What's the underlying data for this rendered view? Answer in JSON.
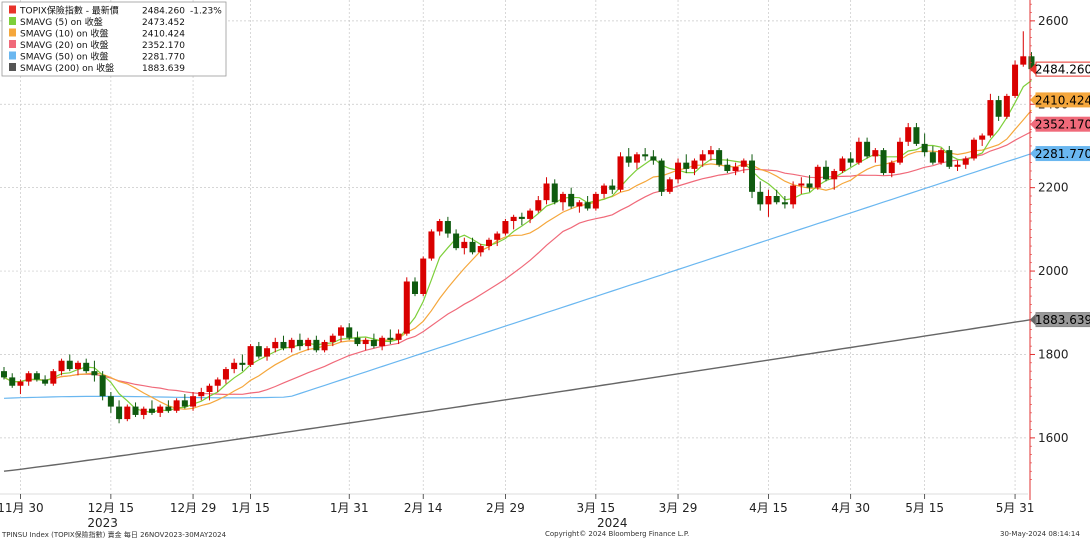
{
  "footer": {
    "left": "TPINSU Index (TOPIX保險指數) 賣金  每日 26NOV2023-30MAY2024",
    "center": "Copyright© 2024 Bloomberg Finance L.P.",
    "right": "30-May-2024 08:14:14"
  },
  "colors": {
    "up": "#d90000",
    "down": "#0f5a0f",
    "sma5": "#7dcf3a",
    "sma10": "#f5a73c",
    "sma20": "#f06a7a",
    "sma50": "#6ab7f0",
    "sma200": "#666666",
    "axis": "#e23030",
    "grid": "#c8c8c8"
  },
  "chart_data": {
    "type": "candlestick",
    "title": "",
    "ylim": [
      1475,
      2650
    ],
    "y_ticks": [
      1600,
      1800,
      2000,
      2200,
      2400,
      2600
    ],
    "legend": [
      {
        "label": "TOPIX保險指數 - 最新價",
        "value": "2484.260",
        "change": "-1.23%",
        "color": "#e8322a"
      },
      {
        "label": "SMAVG (5)  on 收盤",
        "value": "2473.452",
        "color": "#7dcf3a"
      },
      {
        "label": "SMAVG (10)  on 收盤",
        "value": "2410.424",
        "color": "#f5a73c"
      },
      {
        "label": "SMAVG (20)  on 收盤",
        "value": "2352.170",
        "color": "#f06a7a"
      },
      {
        "label": "SMAVG (50)  on 收盤",
        "value": "2281.770",
        "color": "#6ab7f0"
      },
      {
        "label": "SMAVG (200)  on 收盤",
        "value": "1883.639",
        "color": "#555555"
      }
    ],
    "x_ticks": [
      {
        "label": "11月 30",
        "i": 2
      },
      {
        "label": "12月 15",
        "i": 13
      },
      {
        "label": "12月 29",
        "i": 23
      },
      {
        "label": "1月 15",
        "i": 30
      },
      {
        "label": "1月 31",
        "i": 42
      },
      {
        "label": "2月 14",
        "i": 51
      },
      {
        "label": "2月 29",
        "i": 61
      },
      {
        "label": "3月 15",
        "i": 72
      },
      {
        "label": "3月 29",
        "i": 82
      },
      {
        "label": "4月 15",
        "i": 93
      },
      {
        "label": "4月 30",
        "i": 103
      },
      {
        "label": "5月 15",
        "i": 112
      },
      {
        "label": "5月 31",
        "i": 123
      }
    ],
    "year_labels": [
      {
        "label": "2023",
        "i": 12
      },
      {
        "label": "2024",
        "i": 74
      }
    ],
    "price_labels": [
      {
        "text": "2484.260",
        "value": 2484.26,
        "bg": "#ffffff",
        "border": "#e8322a",
        "color": "#000000",
        "marker": "#e8322a"
      },
      {
        "text": "2410.424",
        "value": 2410.424,
        "bg": "#f5a73c",
        "border": "#f5a73c",
        "color": "#000000",
        "marker": "#f5a73c"
      },
      {
        "text": "2352.170",
        "value": 2352.17,
        "bg": "#f06a7a",
        "border": "#f06a7a",
        "color": "#000000",
        "marker": "#f06a7a"
      },
      {
        "text": "2281.770",
        "value": 2281.77,
        "bg": "#6ab7f0",
        "border": "#6ab7f0",
        "color": "#000000",
        "marker": "#6ab7f0"
      },
      {
        "text": "1883.639",
        "value": 1883.639,
        "bg": "#999999",
        "border": "#888888",
        "color": "#000000",
        "marker": "#666666"
      }
    ],
    "candles_ohlc": [
      [
        1760,
        1770,
        1740,
        1745
      ],
      [
        1745,
        1755,
        1720,
        1725
      ],
      [
        1725,
        1740,
        1705,
        1735
      ],
      [
        1735,
        1760,
        1725,
        1755
      ],
      [
        1755,
        1760,
        1735,
        1740
      ],
      [
        1740,
        1750,
        1725,
        1730
      ],
      [
        1730,
        1765,
        1725,
        1760
      ],
      [
        1760,
        1790,
        1750,
        1785
      ],
      [
        1785,
        1800,
        1760,
        1765
      ],
      [
        1765,
        1785,
        1750,
        1780
      ],
      [
        1780,
        1790,
        1755,
        1760
      ],
      [
        1760,
        1785,
        1735,
        1750
      ],
      [
        1750,
        1760,
        1690,
        1700
      ],
      [
        1700,
        1710,
        1660,
        1675
      ],
      [
        1675,
        1690,
        1635,
        1645
      ],
      [
        1645,
        1680,
        1640,
        1675
      ],
      [
        1675,
        1685,
        1650,
        1655
      ],
      [
        1655,
        1675,
        1645,
        1670
      ],
      [
        1670,
        1690,
        1655,
        1660
      ],
      [
        1660,
        1680,
        1650,
        1675
      ],
      [
        1675,
        1690,
        1660,
        1665
      ],
      [
        1665,
        1695,
        1660,
        1690
      ],
      [
        1690,
        1705,
        1670,
        1675
      ],
      [
        1675,
        1710,
        1665,
        1700
      ],
      [
        1700,
        1720,
        1690,
        1710
      ],
      [
        1710,
        1730,
        1690,
        1725
      ],
      [
        1725,
        1745,
        1710,
        1740
      ],
      [
        1740,
        1770,
        1730,
        1765
      ],
      [
        1765,
        1790,
        1755,
        1780
      ],
      [
        1780,
        1800,
        1760,
        1775
      ],
      [
        1775,
        1825,
        1770,
        1820
      ],
      [
        1820,
        1830,
        1790,
        1795
      ],
      [
        1795,
        1820,
        1785,
        1815
      ],
      [
        1815,
        1840,
        1805,
        1830
      ],
      [
        1830,
        1845,
        1810,
        1815
      ],
      [
        1815,
        1840,
        1805,
        1835
      ],
      [
        1835,
        1850,
        1810,
        1820
      ],
      [
        1820,
        1840,
        1810,
        1835
      ],
      [
        1835,
        1845,
        1805,
        1810
      ],
      [
        1810,
        1835,
        1805,
        1830
      ],
      [
        1830,
        1850,
        1820,
        1845
      ],
      [
        1845,
        1870,
        1830,
        1865
      ],
      [
        1865,
        1875,
        1835,
        1840
      ],
      [
        1840,
        1855,
        1820,
        1825
      ],
      [
        1825,
        1840,
        1810,
        1835
      ],
      [
        1835,
        1850,
        1815,
        1820
      ],
      [
        1820,
        1845,
        1810,
        1840
      ],
      [
        1840,
        1860,
        1825,
        1835
      ],
      [
        1835,
        1860,
        1825,
        1850
      ],
      [
        1850,
        1985,
        1845,
        1975
      ],
      [
        1975,
        1985,
        1940,
        1945
      ],
      [
        1945,
        2035,
        1940,
        2030
      ],
      [
        2030,
        2100,
        2025,
        2095
      ],
      [
        2095,
        2125,
        2085,
        2120
      ],
      [
        2120,
        2130,
        2080,
        2090
      ],
      [
        2090,
        2100,
        2050,
        2055
      ],
      [
        2055,
        2080,
        2040,
        2070
      ],
      [
        2070,
        2080,
        2040,
        2045
      ],
      [
        2045,
        2065,
        2035,
        2060
      ],
      [
        2060,
        2080,
        2050,
        2075
      ],
      [
        2075,
        2095,
        2060,
        2090
      ],
      [
        2090,
        2125,
        2085,
        2120
      ],
      [
        2120,
        2135,
        2100,
        2130
      ],
      [
        2130,
        2140,
        2110,
        2125
      ],
      [
        2125,
        2150,
        2115,
        2145
      ],
      [
        2145,
        2180,
        2140,
        2170
      ],
      [
        2170,
        2225,
        2160,
        2210
      ],
      [
        2210,
        2220,
        2160,
        2165
      ],
      [
        2165,
        2190,
        2145,
        2185
      ],
      [
        2185,
        2200,
        2150,
        2155
      ],
      [
        2155,
        2170,
        2140,
        2165
      ],
      [
        2165,
        2180,
        2145,
        2150
      ],
      [
        2150,
        2190,
        2145,
        2185
      ],
      [
        2185,
        2210,
        2175,
        2205
      ],
      [
        2205,
        2220,
        2185,
        2195
      ],
      [
        2195,
        2285,
        2190,
        2275
      ],
      [
        2275,
        2295,
        2250,
        2260
      ],
      [
        2260,
        2285,
        2245,
        2280
      ],
      [
        2280,
        2295,
        2265,
        2275
      ],
      [
        2275,
        2290,
        2255,
        2265
      ],
      [
        2265,
        2270,
        2180,
        2190
      ],
      [
        2190,
        2225,
        2185,
        2220
      ],
      [
        2220,
        2270,
        2210,
        2260
      ],
      [
        2260,
        2280,
        2235,
        2245
      ],
      [
        2245,
        2270,
        2230,
        2265
      ],
      [
        2265,
        2290,
        2250,
        2280
      ],
      [
        2280,
        2300,
        2265,
        2290
      ],
      [
        2290,
        2295,
        2250,
        2255
      ],
      [
        2255,
        2270,
        2235,
        2240
      ],
      [
        2240,
        2260,
        2230,
        2250
      ],
      [
        2250,
        2270,
        2235,
        2265
      ],
      [
        2265,
        2280,
        2175,
        2190
      ],
      [
        2190,
        2215,
        2145,
        2160
      ],
      [
        2160,
        2195,
        2130,
        2180
      ],
      [
        2180,
        2195,
        2160,
        2165
      ],
      [
        2165,
        2180,
        2150,
        2160
      ],
      [
        2160,
        2215,
        2150,
        2205
      ],
      [
        2205,
        2225,
        2185,
        2210
      ],
      [
        2210,
        2230,
        2190,
        2200
      ],
      [
        2200,
        2255,
        2195,
        2250
      ],
      [
        2250,
        2265,
        2215,
        2220
      ],
      [
        2220,
        2245,
        2195,
        2240
      ],
      [
        2240,
        2275,
        2235,
        2270
      ],
      [
        2270,
        2285,
        2250,
        2260
      ],
      [
        2260,
        2320,
        2255,
        2310
      ],
      [
        2310,
        2320,
        2270,
        2275
      ],
      [
        2275,
        2295,
        2260,
        2290
      ],
      [
        2290,
        2295,
        2230,
        2235
      ],
      [
        2235,
        2265,
        2225,
        2260
      ],
      [
        2260,
        2320,
        2255,
        2310
      ],
      [
        2310,
        2355,
        2300,
        2345
      ],
      [
        2345,
        2355,
        2300,
        2305
      ],
      [
        2305,
        2330,
        2275,
        2285
      ],
      [
        2285,
        2300,
        2255,
        2260
      ],
      [
        2260,
        2295,
        2255,
        2290
      ],
      [
        2290,
        2300,
        2245,
        2250
      ],
      [
        2250,
        2265,
        2240,
        2255
      ],
      [
        2255,
        2275,
        2245,
        2270
      ],
      [
        2270,
        2320,
        2265,
        2315
      ],
      [
        2315,
        2330,
        2300,
        2325
      ],
      [
        2325,
        2425,
        2320,
        2410
      ],
      [
        2410,
        2420,
        2360,
        2370
      ],
      [
        2370,
        2425,
        2365,
        2420
      ],
      [
        2420,
        2505,
        2415,
        2495
      ],
      [
        2495,
        2575,
        2490,
        2515
      ],
      [
        2515,
        2525,
        2480,
        2484.26
      ]
    ]
  }
}
